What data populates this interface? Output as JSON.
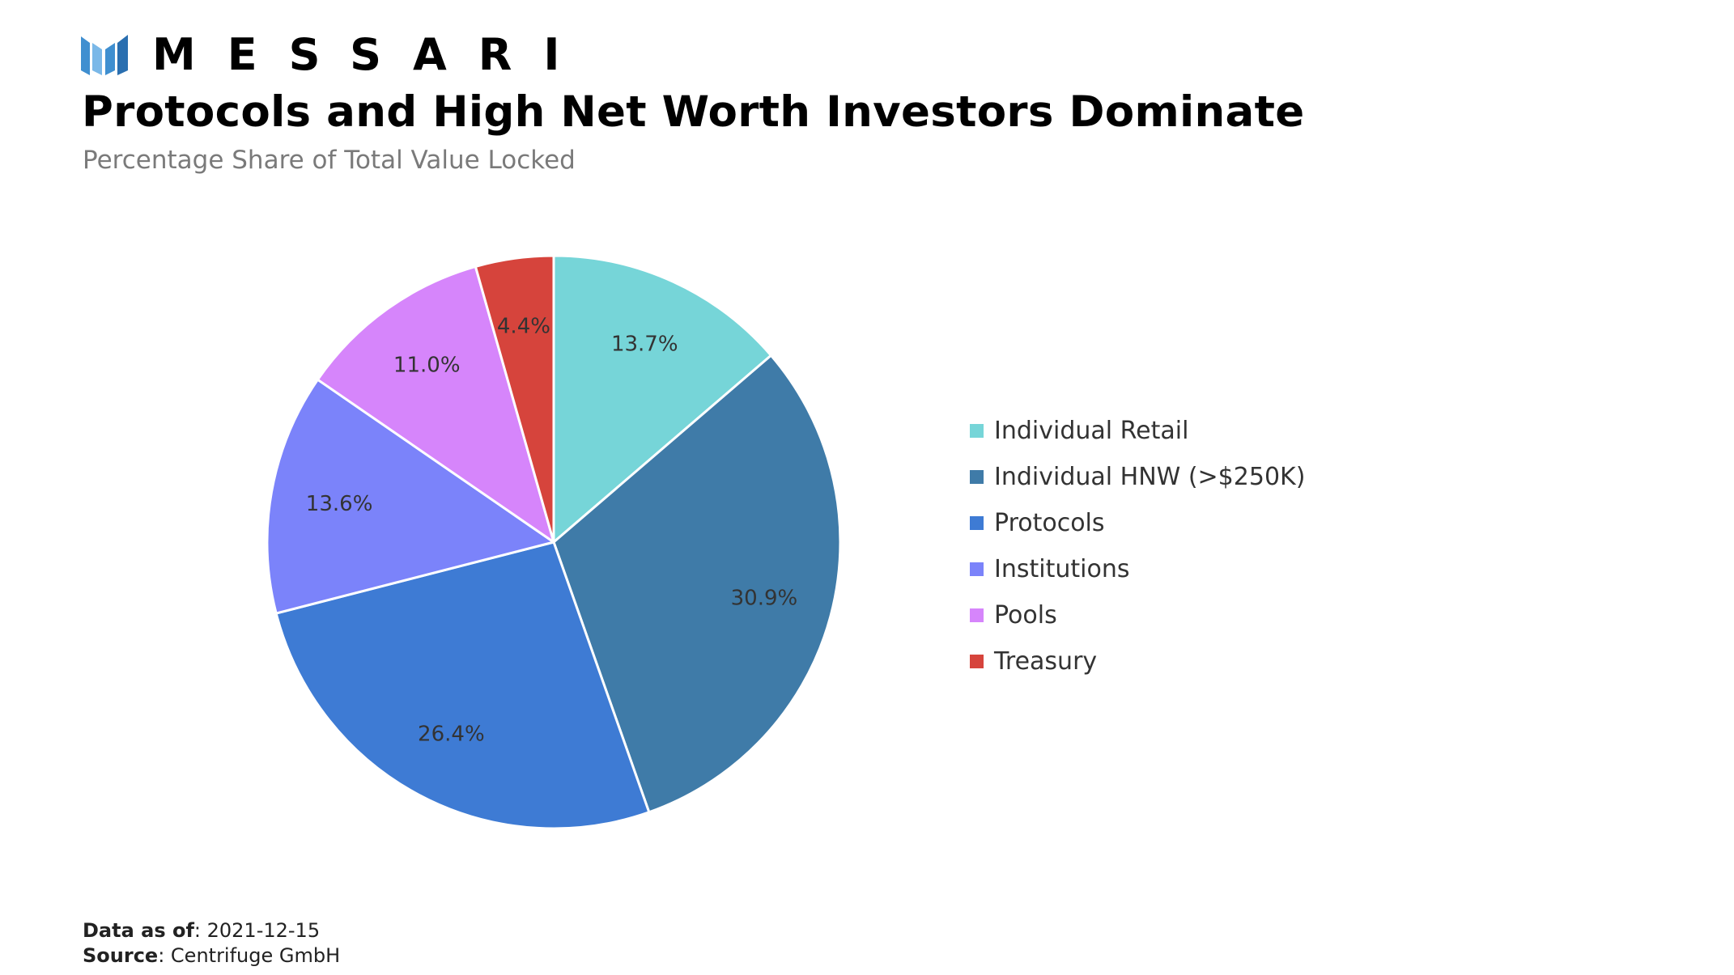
{
  "brand": {
    "name": "MESSARI",
    "logo_colors": [
      "#3f8fd0",
      "#7ab8e8",
      "#2a6fb0"
    ]
  },
  "title": "Protocols and High Net Worth Investors Dominate",
  "subtitle": "Percentage Share of Total Value Locked",
  "footer": {
    "data_as_of_label": "Data as of",
    "data_as_of_value": ": 2021-12-15",
    "source_label": "Source",
    "source_value": ": Centrifuge GmbH"
  },
  "chart_data": {
    "type": "pie",
    "title": "Protocols and High Net Worth Investors Dominate",
    "subtitle": "Percentage Share of Total Value Locked",
    "legend_position": "right",
    "start_angle": "12 o'clock",
    "direction": "clockwise",
    "slices": [
      {
        "label": "Individual Retail",
        "value": 13.7,
        "value_label": "13.7%",
        "color": "#76d5d8"
      },
      {
        "label": "Individual HNW (>$250K)",
        "value": 30.9,
        "value_label": "30.9%",
        "color": "#3f7ba8"
      },
      {
        "label": "Protocols",
        "value": 26.4,
        "value_label": "26.4%",
        "color": "#3e7bd4"
      },
      {
        "label": "Institutions",
        "value": 13.6,
        "value_label": "13.6%",
        "color": "#7b83fa"
      },
      {
        "label": "Pools",
        "value": 11.0,
        "value_label": "11.0%",
        "color": "#d685fb"
      },
      {
        "label": "Treasury",
        "value": 4.4,
        "value_label": "4.4%",
        "color": "#d6443c"
      }
    ]
  }
}
